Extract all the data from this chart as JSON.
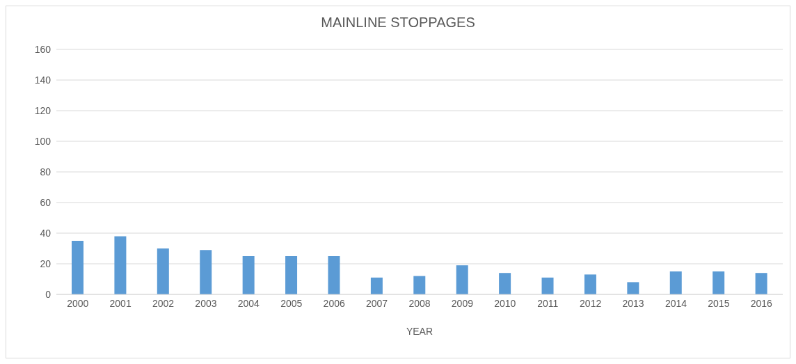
{
  "chart_data": {
    "type": "bar",
    "title": "MAINLINE STOPPAGES",
    "xlabel": "YEAR",
    "categories": [
      "2000",
      "2001",
      "2002",
      "2003",
      "2004",
      "2005",
      "2006",
      "2007",
      "2008",
      "2009",
      "2010",
      "2011",
      "2012",
      "2013",
      "2014",
      "2015",
      "2016"
    ],
    "values": [
      35,
      38,
      30,
      29,
      25,
      25,
      25,
      11,
      12,
      19,
      14,
      11,
      13,
      8,
      15,
      15,
      14
    ],
    "color": "#5b9bd5",
    "ylim": [
      0,
      160
    ],
    "yticks": [
      0,
      20,
      40,
      60,
      80,
      100,
      120,
      140,
      160
    ],
    "grid": "y"
  }
}
